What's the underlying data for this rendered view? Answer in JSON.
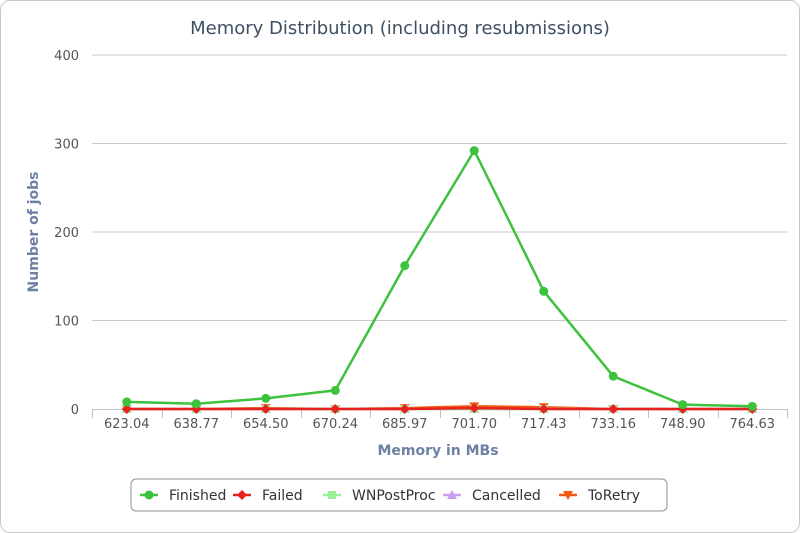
{
  "chart_data": {
    "type": "line",
    "title": "Memory Distribution (including resubmissions)",
    "xlabel": "Memory in MBs",
    "ylabel": "Number of jobs",
    "categories": [
      "623.04",
      "638.77",
      "654.50",
      "670.24",
      "685.97",
      "701.70",
      "717.43",
      "733.16",
      "748.90",
      "764.63"
    ],
    "ylim": [
      0,
      400
    ],
    "yticks": [
      0,
      100,
      200,
      300,
      400
    ],
    "grid": true,
    "legend_position": "bottom-center",
    "series": [
      {
        "name": "Finished",
        "color": "#3cc23c",
        "marker": "circle",
        "values": [
          8,
          6,
          12,
          21,
          162,
          292,
          133,
          37,
          5,
          3
        ]
      },
      {
        "name": "Failed",
        "color": "#e8201f",
        "marker": "diamond",
        "values": [
          0,
          0,
          0,
          0,
          0,
          1,
          0,
          0,
          0,
          0
        ]
      },
      {
        "name": "WNPostProc",
        "color": "#99ee99",
        "marker": "square",
        "values": [
          0,
          0,
          0,
          0,
          0,
          0,
          0,
          0,
          0,
          0
        ]
      },
      {
        "name": "Cancelled",
        "color": "#c9a0ec",
        "marker": "triangle",
        "values": [
          0,
          0,
          0,
          0,
          0,
          0,
          0,
          0,
          0,
          0
        ]
      },
      {
        "name": "ToRetry",
        "color": "#f25a14",
        "marker": "triangle-down",
        "values": [
          0,
          0,
          1,
          0,
          1,
          3,
          2,
          0,
          0,
          0
        ]
      }
    ]
  }
}
